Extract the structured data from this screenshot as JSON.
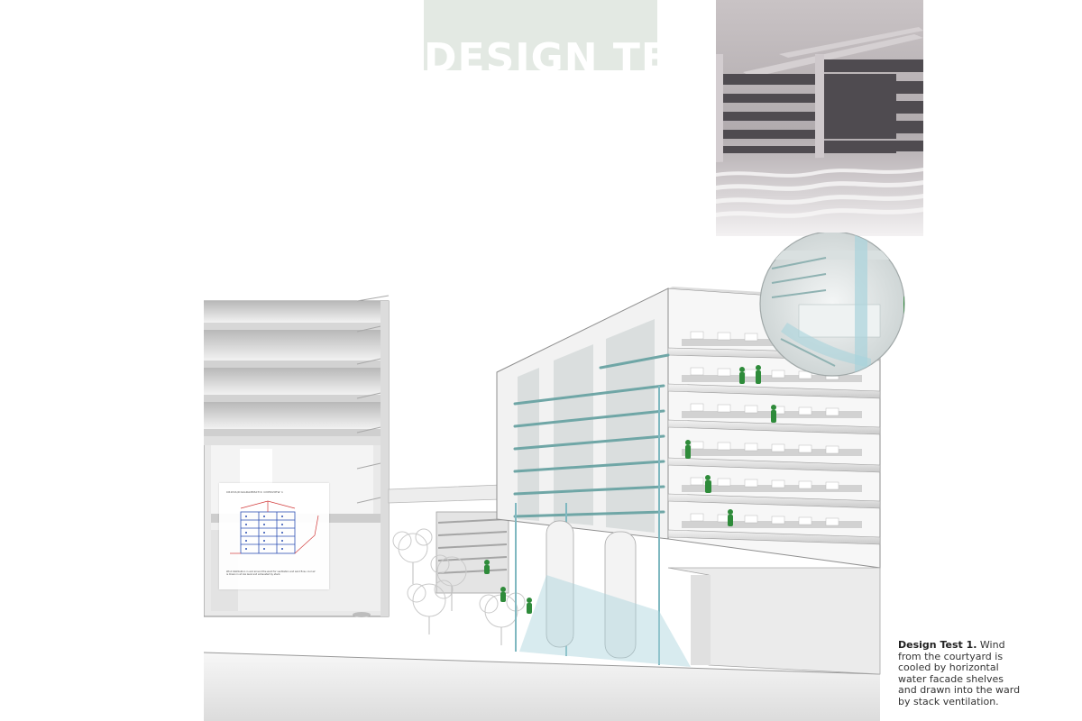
{
  "title": "DESIGN TEST",
  "photo_icon": "interior-rendering-photo",
  "section_icon": "building-section-illustration",
  "diagram": {
    "icon": "ventilation-diagram",
    "title": "CROSS/DIAGRAMMATIC OVERVIEW 1",
    "note": "Wind distribution in and around the ward for ventilation and wind flow; cool air is drawn in at low level and exhausted by stack."
  },
  "caption": {
    "bold": "Design Test 1.",
    "text": " Wind from the courtyard is cooled by horizontal water facade shelves and drawn into the ward by stack ventilation."
  },
  "colors": {
    "title_block": "#e3e9e3",
    "accent_green": "#2e8b3a",
    "water_blue": "#a9d3dc"
  }
}
